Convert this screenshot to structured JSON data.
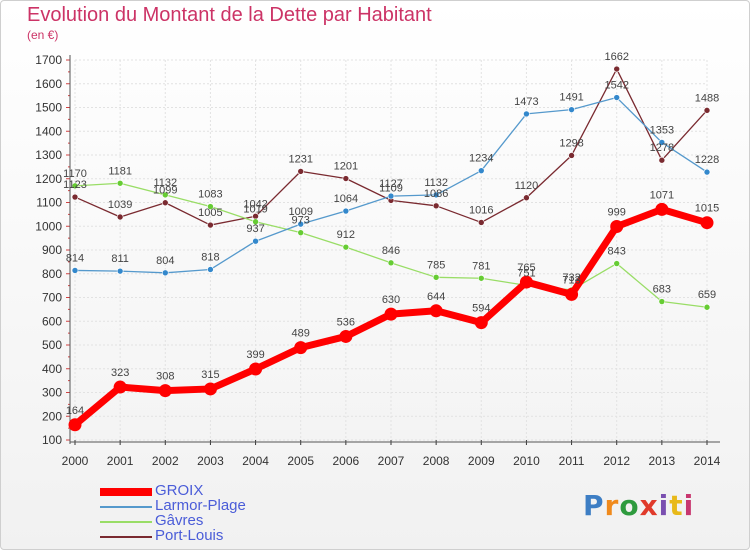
{
  "title": "Evolution du Montant de la Dette par Habitant",
  "unit": "(en €)",
  "logo": {
    "text": "Proxiti",
    "colors": [
      "#3d7ec4",
      "#f08a1c",
      "#2e9b3e",
      "#e03a2b",
      "#7a4fb0",
      "#e8b91a",
      "#c8366f"
    ]
  },
  "chart_data": {
    "type": "line",
    "x": [
      2000,
      2001,
      2002,
      2003,
      2004,
      2005,
      2006,
      2007,
      2008,
      2009,
      2010,
      2011,
      2012,
      2013,
      2014
    ],
    "ylim": [
      100,
      1700
    ],
    "yticks": [
      100,
      200,
      300,
      400,
      500,
      600,
      700,
      800,
      900,
      1000,
      1100,
      1200,
      1300,
      1400,
      1500,
      1600,
      1700
    ],
    "grid": true,
    "legend_position": "bottom-left",
    "series": [
      {
        "name": "Port-Louis",
        "color": "#7a2a30",
        "dot": "#7a2a30",
        "values": [
          1123,
          1039,
          1099,
          1005,
          1042,
          1231,
          1201,
          1109,
          1086,
          1016,
          1120,
          1298,
          1662,
          1278,
          1488
        ]
      },
      {
        "name": "Gâvres",
        "color": "#99dd66",
        "dot": "#66cc33",
        "values": [
          1170,
          1181,
          1132,
          1083,
          1019,
          973,
          912,
          846,
          785,
          781,
          751,
          732,
          843,
          683,
          659
        ]
      },
      {
        "name": "Larmor-Plage",
        "color": "#5599cc",
        "dot": "#3388cc",
        "values": [
          814,
          811,
          804,
          818,
          937,
          1009,
          1064,
          1127,
          1132,
          1234,
          1473,
          1491,
          1542,
          1353,
          1228
        ]
      },
      {
        "name": "GROIX",
        "color": "#ff0000",
        "dot": "#ff0000",
        "values": [
          164,
          323,
          308,
          315,
          399,
          489,
          536,
          630,
          644,
          594,
          765,
          713,
          999,
          1071,
          1015
        ]
      }
    ],
    "legend": [
      "GROIX",
      "Larmor-Plage",
      "Gâvres",
      "Port-Louis"
    ]
  }
}
